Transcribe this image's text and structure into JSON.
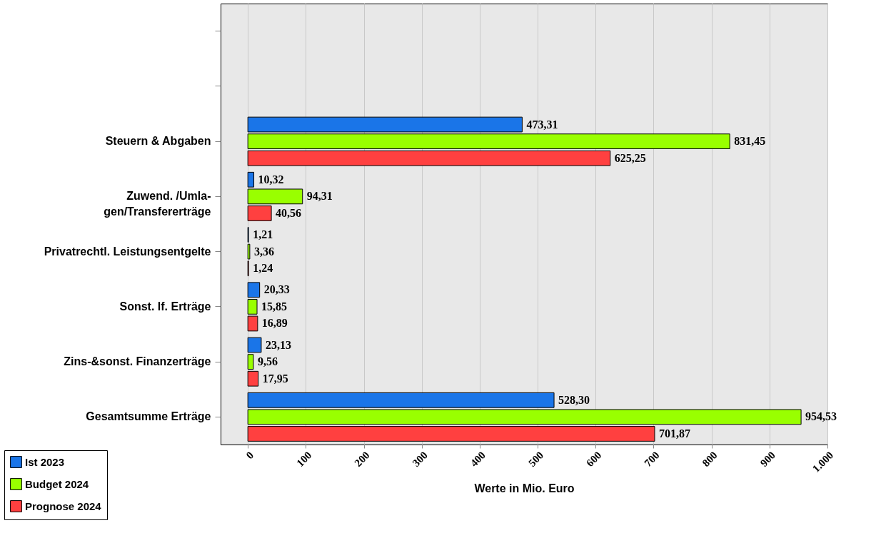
{
  "chart_data": {
    "type": "bar",
    "orientation": "horizontal",
    "xlabel": "Werte in Mio. Euro",
    "categories": [
      null,
      null,
      "Steuern & Abgaben",
      "Zuwend. /Umla-\ngen/Transfererträge",
      "Privatrechtl. Leistungsentgelte",
      "Sonst. lf. Erträge",
      "Zins-&sonst. Finanzerträge",
      "Gesamtsumme Erträge"
    ],
    "series": [
      {
        "name": "Ist 2023",
        "color": "#1a75e8",
        "values": [
          null,
          null,
          473.31,
          10.32,
          1.21,
          20.33,
          23.13,
          528.3
        ],
        "value_labels": [
          null,
          null,
          "473,31",
          "10,32",
          "1,21",
          "20,33",
          "23,13",
          "528,30"
        ]
      },
      {
        "name": "Budget 2024",
        "color": "#99ff00",
        "values": [
          null,
          null,
          831.45,
          94.31,
          3.36,
          15.85,
          9.56,
          954.53
        ],
        "value_labels": [
          null,
          null,
          "831,45",
          "94,31",
          "3,36",
          "15,85",
          "9,56",
          "954,53"
        ]
      },
      {
        "name": "Prognose 2024",
        "color": "#ff4040",
        "values": [
          null,
          null,
          625.25,
          40.56,
          1.24,
          16.89,
          17.95,
          701.87
        ],
        "value_labels": [
          null,
          null,
          "625,25",
          "40,56",
          "1,24",
          "16,89",
          "17,95",
          "701,87"
        ]
      }
    ],
    "xlim": [
      -47,
      1000
    ],
    "xticks": [
      0,
      100,
      200,
      300,
      400,
      500,
      600,
      700,
      800,
      900,
      {
        "value": 1000,
        "label": "1.000"
      }
    ],
    "grid": "x",
    "legend": "bottom left"
  }
}
